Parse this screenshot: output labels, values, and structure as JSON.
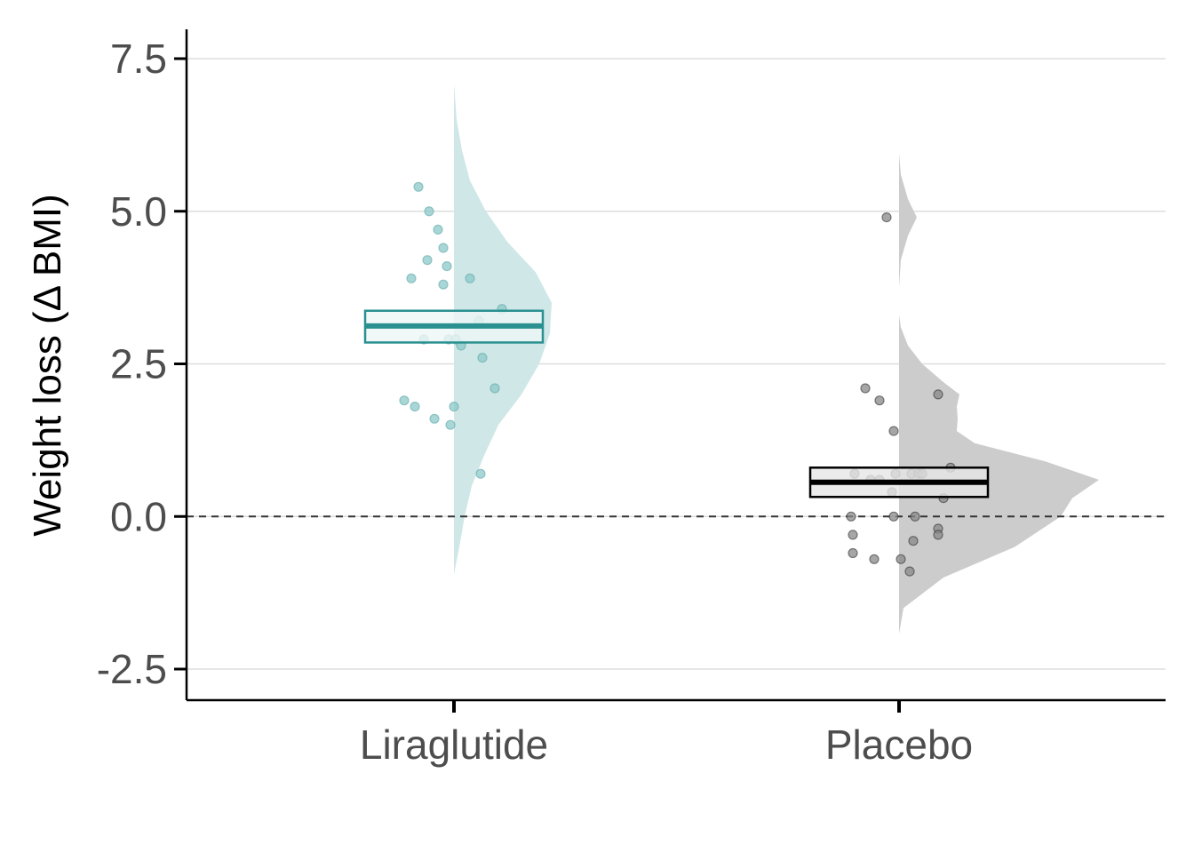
{
  "chart_data": {
    "type": "raincloud",
    "title": "",
    "xlabel": "",
    "ylabel": "Weight loss (Δ BMI)",
    "ylim": [
      -2.9,
      8.0
    ],
    "yticks": [
      {
        "value": -2.5,
        "label": "-2.5"
      },
      {
        "value": 0.0,
        "label": "0.0"
      },
      {
        "value": 2.5,
        "label": "2.5"
      },
      {
        "value": 5.0,
        "label": "5.0"
      },
      {
        "value": 7.5,
        "label": "7.5"
      }
    ],
    "grid": "horizontal-major",
    "reference_line": 0.0,
    "categories": [
      "Liraglutide",
      "Placebo"
    ],
    "groups": [
      {
        "category": "Liraglutide",
        "color": "#2a9090",
        "fill": "#d0e7e7",
        "box_fill": "#eef6f6",
        "mean": 3.12,
        "ci": [
          2.85,
          3.37
        ],
        "density": [
          [
            -0.95,
            0.0
          ],
          [
            -0.5,
            0.06
          ],
          [
            0.0,
            0.12
          ],
          [
            0.5,
            0.2
          ],
          [
            1.0,
            0.34
          ],
          [
            1.5,
            0.5
          ],
          [
            2.0,
            0.76
          ],
          [
            2.5,
            0.96
          ],
          [
            3.0,
            1.08
          ],
          [
            3.5,
            1.1
          ],
          [
            4.0,
            0.92
          ],
          [
            4.5,
            0.6
          ],
          [
            5.0,
            0.36
          ],
          [
            5.5,
            0.18
          ],
          [
            6.0,
            0.09
          ],
          [
            6.5,
            0.03
          ],
          [
            7.1,
            0.0
          ]
        ],
        "points": [
          {
            "x": -0.4,
            "y": 5.4
          },
          {
            "x": -0.28,
            "y": 5.0
          },
          {
            "x": -0.18,
            "y": 4.7
          },
          {
            "x": -0.12,
            "y": 4.4
          },
          {
            "x": -0.3,
            "y": 4.2
          },
          {
            "x": -0.08,
            "y": 4.1
          },
          {
            "x": -0.48,
            "y": 3.9
          },
          {
            "x": 0.18,
            "y": 3.9
          },
          {
            "x": -0.12,
            "y": 3.8
          },
          {
            "x": 0.54,
            "y": 3.4
          },
          {
            "x": 0.28,
            "y": 3.2
          },
          {
            "x": -0.34,
            "y": 2.9
          },
          {
            "x": -0.06,
            "y": 2.9
          },
          {
            "x": 0.02,
            "y": 2.9
          },
          {
            "x": 0.08,
            "y": 2.8
          },
          {
            "x": 0.32,
            "y": 2.6
          },
          {
            "x": 0.46,
            "y": 2.1
          },
          {
            "x": -0.56,
            "y": 1.9
          },
          {
            "x": -0.44,
            "y": 1.8
          },
          {
            "x": 0.0,
            "y": 1.8
          },
          {
            "x": -0.22,
            "y": 1.6
          },
          {
            "x": -0.04,
            "y": 1.5
          },
          {
            "x": 0.3,
            "y": 0.7
          }
        ]
      },
      {
        "category": "Placebo",
        "color": "#000000",
        "fill": "#cccccc",
        "box_fill": "#e6e6e6",
        "mean": 0.56,
        "ci": [
          0.32,
          0.8
        ],
        "density": [
          [
            -1.92,
            0.0
          ],
          [
            -1.5,
            0.05
          ],
          [
            -1.0,
            0.5
          ],
          [
            -0.5,
            1.3
          ],
          [
            0.0,
            1.82
          ],
          [
            0.3,
            1.95
          ],
          [
            0.6,
            2.25
          ],
          [
            0.9,
            1.65
          ],
          [
            1.2,
            0.85
          ],
          [
            1.4,
            0.65
          ],
          [
            1.6,
            0.66
          ],
          [
            1.8,
            0.65
          ],
          [
            2.0,
            0.68
          ],
          [
            2.2,
            0.5
          ],
          [
            2.5,
            0.26
          ],
          [
            2.8,
            0.1
          ],
          [
            3.1,
            0.02
          ],
          [
            3.3,
            0.0
          ]
        ],
        "density_upper": [
          [
            3.75,
            0.0
          ],
          [
            4.2,
            0.02
          ],
          [
            4.6,
            0.1
          ],
          [
            4.9,
            0.2
          ],
          [
            5.2,
            0.1
          ],
          [
            5.6,
            0.02
          ],
          [
            5.95,
            0.0
          ]
        ],
        "points": [
          {
            "x": -0.14,
            "y": 4.9
          },
          {
            "x": -0.38,
            "y": 2.1
          },
          {
            "x": 0.44,
            "y": 2.0
          },
          {
            "x": -0.22,
            "y": 1.9
          },
          {
            "x": -0.06,
            "y": 1.4
          },
          {
            "x": 0.58,
            "y": 0.8
          },
          {
            "x": -0.5,
            "y": 0.7
          },
          {
            "x": -0.04,
            "y": 0.7
          },
          {
            "x": 0.14,
            "y": 0.7
          },
          {
            "x": 0.22,
            "y": 0.7
          },
          {
            "x": 0.26,
            "y": 0.7
          },
          {
            "x": -0.32,
            "y": 0.6
          },
          {
            "x": -0.22,
            "y": 0.6
          },
          {
            "x": -0.08,
            "y": 0.4
          },
          {
            "x": 0.5,
            "y": 0.3
          },
          {
            "x": -0.54,
            "y": 0.0
          },
          {
            "x": -0.06,
            "y": 0.0
          },
          {
            "x": 0.18,
            "y": 0.0
          },
          {
            "x": 0.44,
            "y": -0.2
          },
          {
            "x": 0.44,
            "y": -0.3
          },
          {
            "x": -0.52,
            "y": -0.3
          },
          {
            "x": 0.16,
            "y": -0.4
          },
          {
            "x": -0.52,
            "y": -0.6
          },
          {
            "x": -0.28,
            "y": -0.7
          },
          {
            "x": 0.02,
            "y": -0.7
          },
          {
            "x": 0.12,
            "y": -0.9
          }
        ]
      }
    ]
  }
}
